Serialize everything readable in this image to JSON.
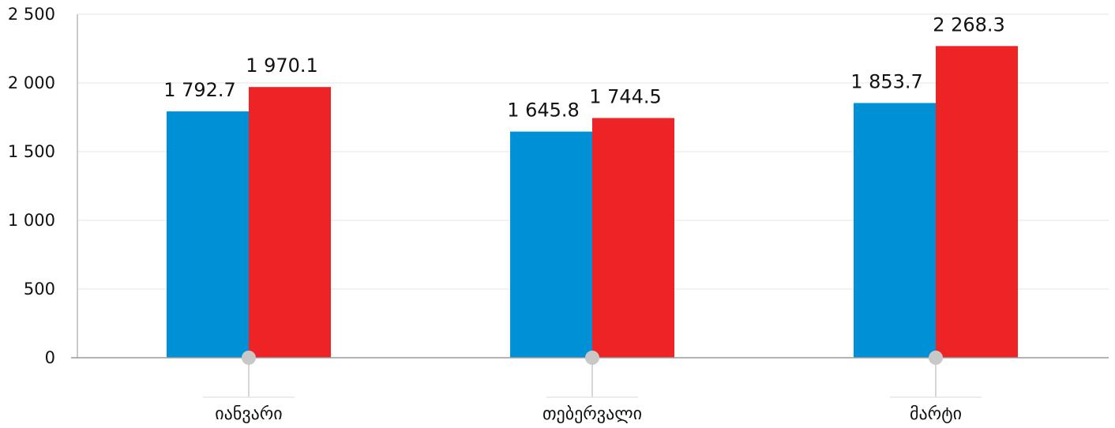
{
  "chart_data": {
    "type": "bar",
    "categories": [
      "იანვარი",
      "თებერვალი",
      "მარტი"
    ],
    "series": [
      {
        "values": [
          1792.7,
          1645.8,
          1853.7
        ],
        "labels": [
          "1 792.7",
          "1 645.8",
          "1 853.7"
        ],
        "color": "#0090D6"
      },
      {
        "values": [
          1970.1,
          1744.5,
          2268.3
        ],
        "labels": [
          "1 970.1",
          "1 744.5",
          "2 268.3"
        ],
        "color": "#EE2326"
      }
    ],
    "ylim": [
      0,
      2500
    ],
    "yticks": [
      0,
      500,
      1000,
      1500,
      2000,
      2500
    ],
    "ytick_labels": [
      "0",
      "500",
      "1 000",
      "1 500",
      "2 000",
      "2 500"
    ],
    "grid": true,
    "legend": "none",
    "colors": {
      "grid": "#E5E5E5",
      "axis": "#9A9A9A",
      "marker": "#C8C8C8",
      "text": "#111111"
    }
  }
}
